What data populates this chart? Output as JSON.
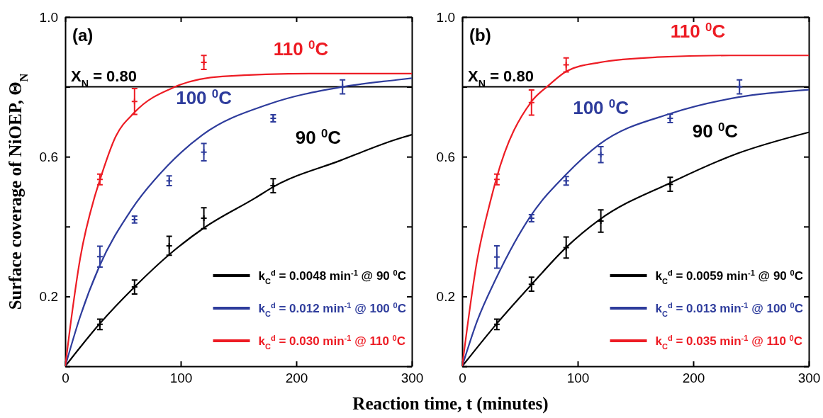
{
  "chart_data": [
    {
      "type": "line",
      "xlabel": "Reaction time, t (minutes)",
      "ylabel": "Surface coverage of NiOEP, Θ$_{N}$",
      "xlim": [
        0,
        300
      ],
      "ylim": [
        0,
        1
      ],
      "xticks": [
        0,
        100,
        200,
        300
      ],
      "yticks": [
        {
          "value": 0,
          "label": null
        },
        {
          "value": 0.2,
          "label": "0.2"
        },
        {
          "value": 0.4,
          "label": null
        },
        {
          "value": 0.6,
          "label": "0.6"
        },
        {
          "value": 0.8,
          "label": null
        },
        {
          "value": 1,
          "label": "1.0"
        }
      ],
      "legend": "bottom right",
      "ref_lines": [
        {
          "axis": "y",
          "value": 0.8,
          "label": "X$_{N}$ = 0.80",
          "color": "#000000"
        }
      ],
      "annotations": [
        "(a)",
        "90 $^{0}$C",
        "100 $^{0}$C",
        "110 $^{0}$C"
      ],
      "series": [
        {
          "name": "k$_{C}$$^{d}$ = 0.0048 min$^{-1}$ @ 90 $^{0}$C",
          "color": "#000000",
          "x": [
            0,
            29.4,
            60,
            90.8,
            120,
            164,
            180.8,
            238,
            287,
            300
          ],
          "values": [
            0,
            0.12,
            0.227,
            0.322,
            0.396,
            0.481,
            0.515,
            0.589,
            0.65,
            0.663
          ]
        },
        {
          "name": "k$_{C}$$^{d}$ = 0.012 min$^{-1}$ @ 100 $^{0}$C",
          "color": "#2e3c9c",
          "x": [
            0,
            13,
            29.4,
            57,
            88.8,
            119,
            176.7,
            238,
            287,
            300
          ],
          "values": [
            0,
            0.143,
            0.285,
            0.447,
            0.575,
            0.663,
            0.751,
            0.799,
            0.82,
            0.825
          ]
        },
        {
          "name": "k$_{C}$$^{d}$ = 0.030 min$^{-1}$ @ 110 $^{0}$C",
          "color": "#ed1c24",
          "x": [
            0,
            3.9,
            13,
            25,
            29.4,
            43.6,
            60,
            95,
            136,
            212,
            300
          ],
          "values": [
            0,
            0.102,
            0.31,
            0.48,
            0.527,
            0.657,
            0.727,
            0.8,
            0.83,
            0.838,
            0.838
          ]
        },
        {
          "type": "scatter",
          "marker": "cross",
          "color": "#000000",
          "x": [
            30,
            60,
            90,
            120,
            180
          ],
          "values": [
            0.12,
            0.227,
            0.345,
            0.424,
            0.517
          ],
          "errors": [
            0.015,
            0.02,
            0.027,
            0.03,
            0.02
          ]
        },
        {
          "type": "scatter",
          "marker": "cross",
          "color": "#2e3c9c",
          "x": [
            30,
            60,
            90,
            120,
            180,
            240
          ],
          "values": [
            0.314,
            0.42,
            0.531,
            0.613,
            0.71,
            0.8
          ],
          "errors": [
            0.03,
            0.01,
            0.014,
            0.025,
            0.01,
            0.02
          ]
        },
        {
          "type": "scatter",
          "marker": "cross",
          "color": "#ed1c24",
          "x": [
            30,
            60,
            120
          ],
          "values": [
            0.535,
            0.758,
            0.87
          ],
          "errors": [
            0.015,
            0.037,
            0.02
          ]
        }
      ]
    },
    {
      "type": "line",
      "xlim": [
        0,
        300
      ],
      "ylim": [
        0,
        1
      ],
      "xticks": [
        0,
        100,
        200,
        300
      ],
      "yticks": [
        {
          "value": 0,
          "label": null
        },
        {
          "value": 0.2,
          "label": "0.2"
        },
        {
          "value": 0.4,
          "label": null
        },
        {
          "value": 0.6,
          "label": "0.6"
        },
        {
          "value": 0.8,
          "label": null
        },
        {
          "value": 1,
          "label": "1.0"
        }
      ],
      "legend": "bottom right",
      "ref_lines": [
        {
          "axis": "y",
          "value": 0.8,
          "label": "X$_{N}$ = 0.80",
          "color": "#000000"
        }
      ],
      "annotations": [
        "(b)",
        "90 $^{0}$C",
        "100 $^{0}$C",
        "110 $^{0}$C"
      ],
      "series": [
        {
          "name": "k$_{C}$$^{d}$ = 0.0059 min$^{-1}$ @ 90 $^{0}$C",
          "color": "#000000",
          "x": [
            0,
            29.4,
            60,
            89.6,
            119,
            180,
            238,
            300
          ],
          "values": [
            0,
            0.12,
            0.234,
            0.339,
            0.42,
            0.525,
            0.609,
            0.67
          ]
        },
        {
          "name": "k$_{C}$$^{d}$ = 0.013 min$^{-1}$ @ 100 $^{0}$C",
          "color": "#2e3c9c",
          "x": [
            0,
            13,
            29.4,
            60,
            89.6,
            119,
            180.8,
            240,
            300
          ],
          "values": [
            0,
            0.13,
            0.252,
            0.434,
            0.548,
            0.636,
            0.724,
            0.771,
            0.792
          ]
        },
        {
          "name": "k$_{C}$$^{d}$ = 0.035 min$^{-1}$ @ 110 $^{0}$C",
          "color": "#ed1c24",
          "x": [
            0,
            13,
            25,
            29.4,
            60,
            74,
            91,
            119,
            168.6,
            232,
            300
          ],
          "values": [
            0,
            0.305,
            0.48,
            0.535,
            0.758,
            0.802,
            0.846,
            0.87,
            0.885,
            0.89,
            0.89
          ]
        },
        {
          "type": "scatter",
          "marker": "cross",
          "color": "#000000",
          "x": [
            30,
            60,
            90,
            120,
            180
          ],
          "values": [
            0.12,
            0.235,
            0.34,
            0.416,
            0.521
          ],
          "errors": [
            0.015,
            0.02,
            0.03,
            0.032,
            0.02
          ]
        },
        {
          "type": "scatter",
          "marker": "cross",
          "color": "#2e3c9c",
          "x": [
            30,
            60,
            90,
            120,
            180,
            240
          ],
          "values": [
            0.313,
            0.424,
            0.531,
            0.606,
            0.71,
            0.8
          ],
          "errors": [
            0.032,
            0.01,
            0.012,
            0.023,
            0.012,
            0.02
          ]
        },
        {
          "type": "scatter",
          "marker": "cross",
          "color": "#ed1c24",
          "x": [
            30,
            60,
            90
          ],
          "values": [
            0.535,
            0.755,
            0.863
          ],
          "errors": [
            0.015,
            0.036,
            0.02
          ]
        }
      ]
    }
  ]
}
